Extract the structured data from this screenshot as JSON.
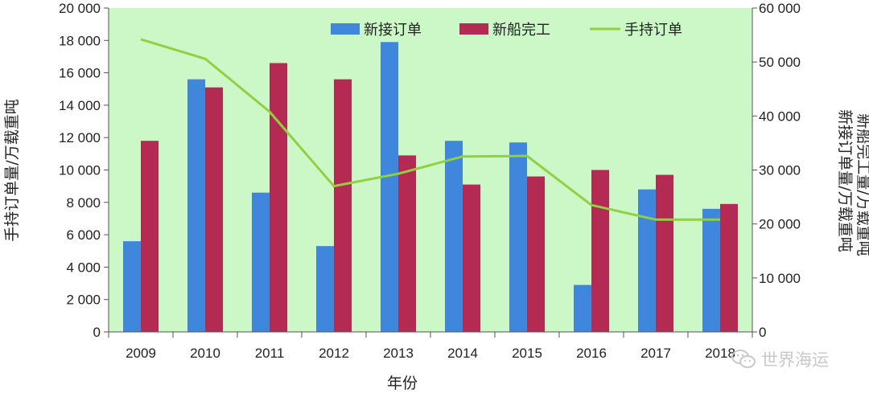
{
  "chart_data": {
    "type": "bar",
    "categories": [
      "2009",
      "2010",
      "2011",
      "2012",
      "2013",
      "2014",
      "2015",
      "2016",
      "2017",
      "2018"
    ],
    "series": [
      {
        "name": "新接订单",
        "kind": "bar",
        "axis": "left",
        "color": "#3f86dd",
        "values": [
          5600,
          15600,
          8600,
          5300,
          17900,
          11800,
          11700,
          2900,
          8800,
          7600
        ]
      },
      {
        "name": "新船完工",
        "kind": "bar",
        "axis": "left",
        "color": "#b52a52",
        "values": [
          11800,
          15100,
          16600,
          15600,
          10900,
          9100,
          9600,
          10000,
          9700,
          7900
        ]
      },
      {
        "name": "手持订单",
        "kind": "line",
        "axis": "right",
        "color": "#8fd140",
        "values": [
          54200,
          50600,
          40800,
          27000,
          29300,
          32500,
          32600,
          23500,
          20800,
          20800
        ]
      }
    ],
    "xlabel": "年份",
    "ylabel_left": "手持订单量/万载重吨",
    "ylabel_right_1": "新船完工量/万载重吨",
    "ylabel_right_2": "新接订单量/万载重吨",
    "ylim_left": [
      0,
      20000
    ],
    "ylim_right": [
      0,
      60000
    ],
    "yticks_left": [
      "0",
      "2 000",
      "4 000",
      "6 000",
      "8 000",
      "10 000",
      "12 000",
      "14 000",
      "16 000",
      "18 000",
      "20 000"
    ],
    "yticks_right": [
      "0",
      "10 000",
      "20 000",
      "30 000",
      "40 000",
      "50 000",
      "60 000"
    ],
    "grid": false,
    "legend_position": "top",
    "plot_background": "#ccf8c8"
  },
  "watermark": {
    "text": "世界海运",
    "icon": "wechat-icon"
  }
}
